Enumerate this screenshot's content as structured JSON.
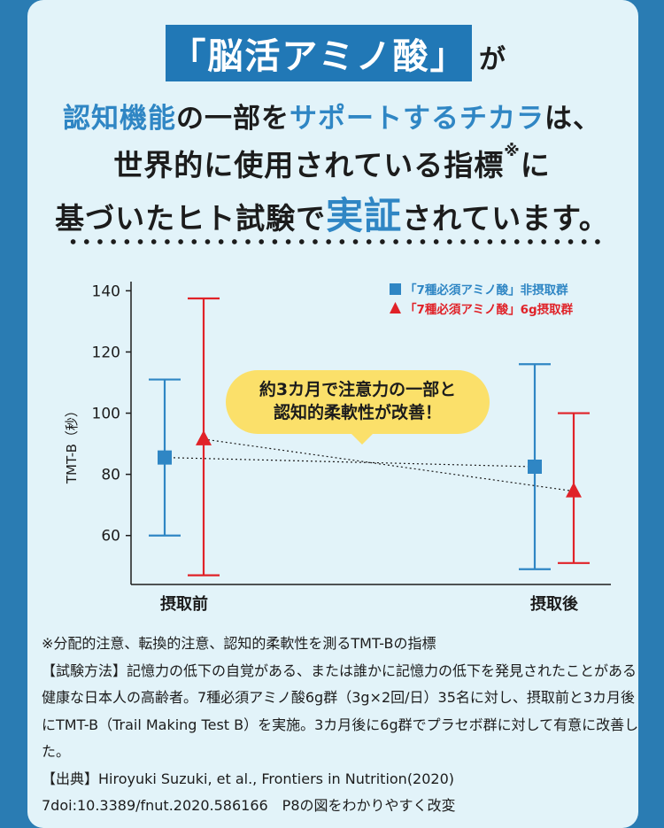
{
  "headline": {
    "highlight": "「脳活アミノ酸」",
    "ga": "が",
    "line2": [
      {
        "t": "認知機能",
        "c": "blue"
      },
      {
        "t": "の一部を",
        "c": ""
      },
      {
        "t": "サポートするチカラ",
        "c": "blue"
      },
      {
        "t": "は、",
        "c": ""
      }
    ],
    "line3a": "世界的に使用されている指標",
    "line3mark": "※",
    "line3b": "に",
    "line4a": "基づいたヒト試験で",
    "line4b": "実証",
    "line4c": "されています。"
  },
  "colors": {
    "blue": "#2f86c4",
    "red": "#e02228",
    "yellow": "#fbe06a",
    "panel": "#e2f3f9",
    "frame": "#2a7cb3"
  },
  "chart_data": {
    "type": "scatter",
    "ylabel": "TMT-B（秒）",
    "ylim": [
      44,
      143
    ],
    "yticks": [
      60,
      80,
      100,
      120,
      140
    ],
    "categories": [
      "摂取前",
      "摂取後"
    ],
    "series": [
      {
        "name": "「7種必須アミノ酸」非摂取群",
        "marker": "square",
        "color": "#2f86c4",
        "points": [
          {
            "x": "摂取前",
            "y": 85.5,
            "low": 60,
            "high": 111
          },
          {
            "x": "摂取後",
            "y": 82.5,
            "low": 49,
            "high": 116
          }
        ]
      },
      {
        "name": "「7種必須アミノ酸」6g摂取群",
        "marker": "triangle",
        "color": "#e02228",
        "points": [
          {
            "x": "摂取前",
            "y": 91.5,
            "low": 47,
            "high": 137.5
          },
          {
            "x": "摂取後",
            "y": 74.5,
            "low": 51,
            "high": 100
          }
        ]
      }
    ]
  },
  "callout": {
    "line1": "約3カ月で注意力の一部と",
    "line2": "認知的柔軟性が改善！"
  },
  "notes": [
    "※分配的注意、転換的注意、認知的柔軟性を測るTMT-Bの指標",
    "【試験方法】記憶力の低下の自覚がある、または誰かに記憶力の低下を発見されたことがある健康な日本人の高齢者。7種必須アミノ酸6g群（3g×2回/日）35名に対し、摂取前と3カ月後にTMT-B（Trail Making Test B）を実施。3カ月後に6g群でプラセボ群に対して有意に改善した。",
    "【出典】Hiroyuki Suzuki, et al., Frontiers in Nutrition(2020)",
    "7doi:10.3389/fnut.2020.586166　P8の図をわかりやすく改変"
  ]
}
